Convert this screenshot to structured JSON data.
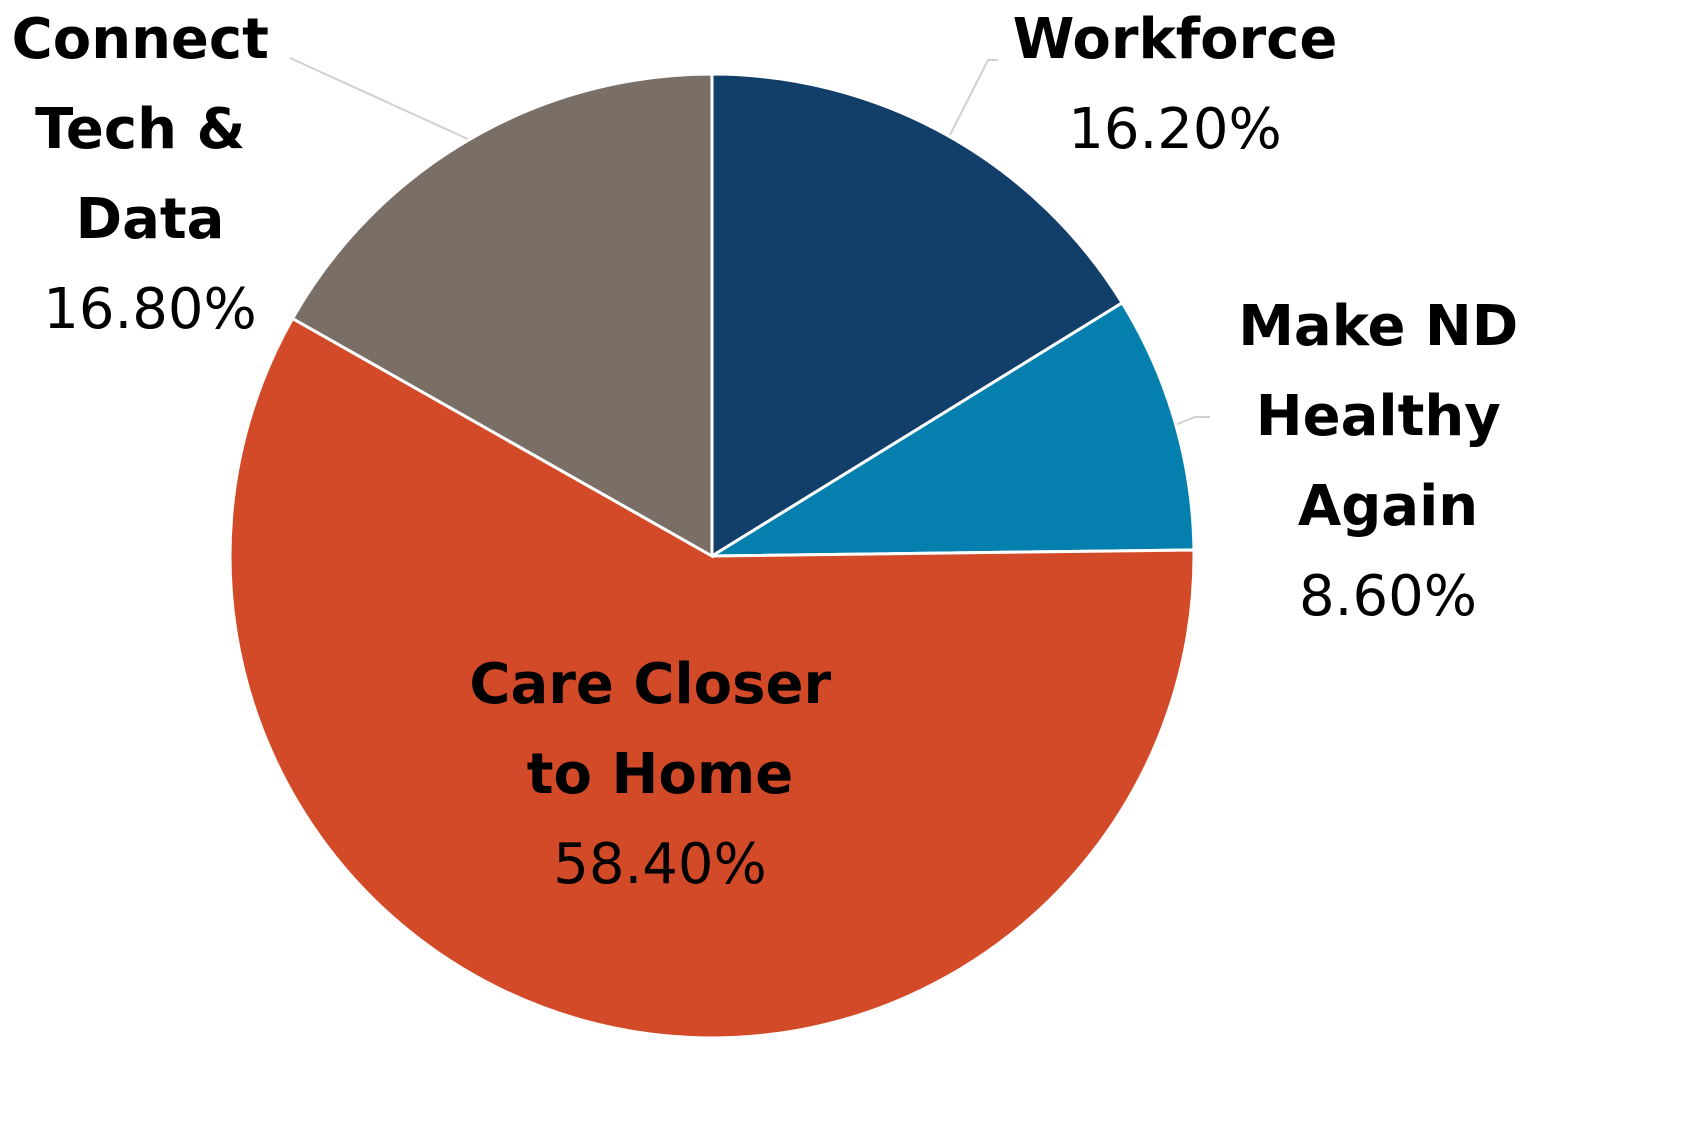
{
  "chart_data": {
    "type": "pie",
    "categories": [
      "Workforce",
      "Make ND Healthy Again",
      "Care Closer to Home",
      "Connect Tech & Data"
    ],
    "values": [
      16.2,
      8.6,
      58.4,
      16.8
    ],
    "value_labels": [
      "16.20%",
      "8.60%",
      "58.40%",
      "16.80%"
    ],
    "colors": [
      "#123f6a",
      "#0580ae",
      "#d34a28",
      "#7a6f66"
    ]
  }
}
